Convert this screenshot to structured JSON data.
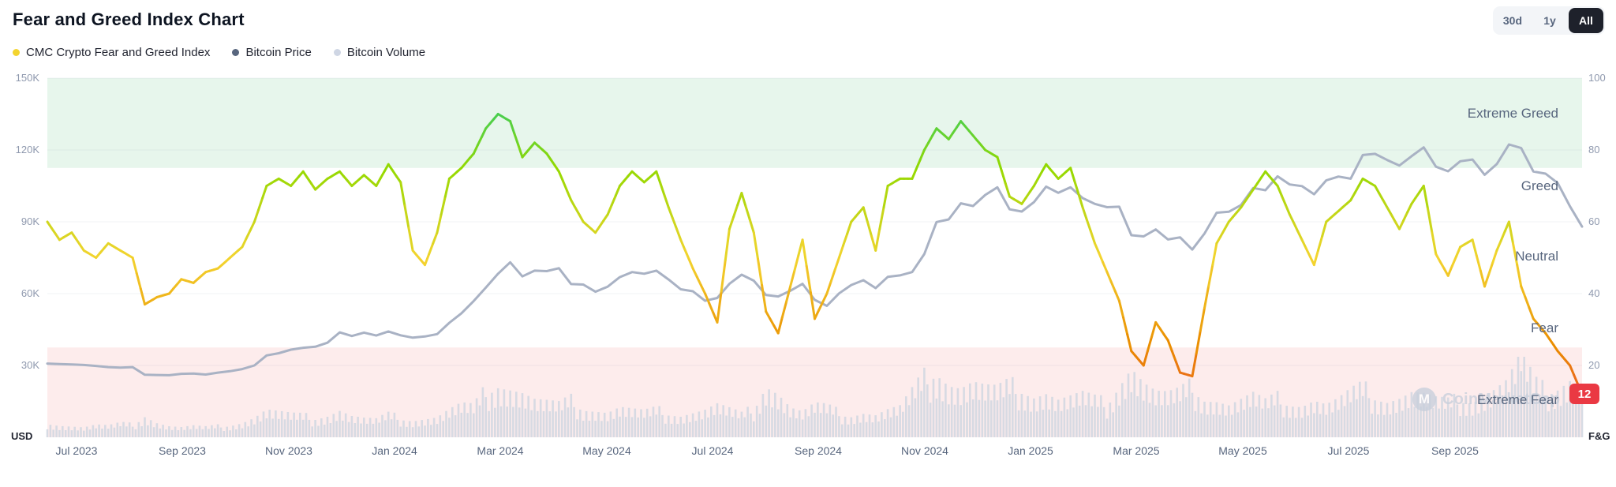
{
  "header": {
    "title": "Fear and Greed Index Chart",
    "range_buttons": [
      {
        "label": "30d",
        "selected": false
      },
      {
        "label": "1y",
        "selected": false
      },
      {
        "label": "All",
        "selected": true
      }
    ]
  },
  "legend": [
    {
      "label": "CMC Crypto Fear and Greed Index",
      "color": "#F3D42F"
    },
    {
      "label": "Bitcoin Price",
      "color": "#58667E"
    },
    {
      "label": "Bitcoin Volume",
      "color": "#CFD6E4"
    }
  ],
  "watermark": {
    "logo_letter": "M",
    "text": "CoinMarketCap"
  },
  "chart_data": {
    "type": "line",
    "title": "Fear and Greed Index Chart",
    "x_interval": "weekly",
    "x_range": [
      "Jun 2023",
      "Nov 2025"
    ],
    "x_tick_labels": [
      "Jul 2023",
      "Sep 2023",
      "Nov 2023",
      "Jan 2024",
      "Mar 2024",
      "May 2024",
      "Jul 2024",
      "Sep 2024",
      "Nov 2024",
      "Jan 2025",
      "Mar 2025",
      "May 2025",
      "Jul 2025",
      "Sep 2025"
    ],
    "left_axis": {
      "label": "USD",
      "ticks": [
        "150K",
        "120K",
        "90K",
        "60K",
        "30K"
      ],
      "min": 0,
      "max": 150000
    },
    "right_axis": {
      "label": "F&G",
      "ticks": [
        "100",
        "80",
        "60",
        "40",
        "20"
      ],
      "min": 0,
      "max": 100
    },
    "bands": [
      {
        "name": "Extreme Greed",
        "range": [
          75,
          100
        ],
        "color": "#E7F6EC"
      },
      {
        "name": "Extreme Fear",
        "range": [
          0,
          25
        ],
        "color": "#FDECEC"
      }
    ],
    "zone_labels": [
      "Extreme Greed",
      "Greed",
      "Neutral",
      "Fear",
      "Extreme Fear"
    ],
    "current_value": 12,
    "colors": {
      "badge": "#EA3943",
      "bitcoin_line": "#A9B2C4",
      "volume": "#D3D8E2",
      "grid": "rgba(88,102,126,0.08)"
    },
    "fg_color_stops": [
      {
        "value": 0,
        "color": "#EA3943"
      },
      {
        "value": 25,
        "color": "#EA8C00"
      },
      {
        "value": 50,
        "color": "#F3D42F"
      },
      {
        "value": 75,
        "color": "#93D900"
      },
      {
        "value": 100,
        "color": "#16C784"
      }
    ],
    "series": [
      {
        "name": "CMC Crypto Fear and Greed Index",
        "axis": "right",
        "values": [
          60,
          55,
          57,
          52,
          50,
          54,
          52,
          50,
          37,
          39,
          40,
          44,
          43,
          46,
          47,
          50,
          53,
          60,
          70,
          72,
          70,
          74,
          69,
          72,
          74,
          70,
          73,
          70,
          76,
          71,
          52,
          48,
          57,
          72,
          75,
          79,
          86,
          90,
          88,
          78,
          82,
          79,
          74,
          66,
          60,
          57,
          62,
          70,
          74,
          71,
          74,
          64,
          55,
          47,
          40,
          32,
          58,
          68,
          57,
          35,
          29,
          42,
          55,
          33,
          40,
          50,
          60,
          64,
          52,
          70,
          72,
          72,
          80,
          86,
          83,
          88,
          84,
          80,
          78,
          67,
          65,
          70,
          76,
          72,
          75,
          64,
          54,
          46,
          38,
          24,
          20,
          32,
          27,
          18,
          17,
          36,
          54,
          60,
          64,
          69,
          74,
          70,
          62,
          55,
          48,
          60,
          63,
          66,
          72,
          70,
          64,
          58,
          65,
          70,
          51,
          45,
          53,
          55,
          42,
          52,
          60,
          42,
          33,
          29,
          24,
          20,
          12
        ]
      },
      {
        "name": "Bitcoin Price",
        "axis": "left",
        "unit": "thousand USD",
        "values": [
          30.8,
          30.6,
          30.4,
          30.2,
          29.8,
          29.3,
          29.1,
          29.3,
          26.1,
          26.0,
          25.9,
          26.5,
          26.6,
          26.2,
          27.0,
          27.6,
          28.5,
          30.0,
          34.2,
          35.1,
          36.6,
          37.4,
          37.8,
          39.5,
          43.8,
          42.3,
          43.7,
          42.5,
          44.2,
          42.6,
          41.6,
          42.1,
          43.1,
          47.8,
          51.8,
          56.9,
          62.5,
          68.3,
          73.1,
          67.2,
          69.6,
          69.4,
          70.6,
          64.0,
          63.8,
          60.8,
          62.9,
          66.9,
          69.0,
          68.3,
          69.6,
          65.9,
          61.8,
          61.0,
          57.0,
          58.2,
          64.1,
          67.9,
          65.4,
          59.4,
          58.8,
          61.2,
          64.1,
          57.4,
          54.9,
          60.1,
          63.6,
          65.6,
          62.3,
          67.0,
          67.6,
          69.0,
          76.5,
          89.9,
          91.0,
          97.7,
          96.6,
          101.2,
          104.4,
          95.2,
          94.3,
          98.2,
          104.7,
          102.1,
          104.4,
          99.9,
          97.5,
          96.1,
          96.3,
          84.4,
          83.9,
          86.8,
          82.6,
          83.5,
          78.4,
          85.1,
          93.8,
          94.2,
          97.0,
          104.1,
          103.2,
          109.0,
          105.6,
          104.9,
          101.5,
          107.3,
          108.9,
          108.0,
          117.9,
          118.4,
          115.8,
          113.5,
          117.4,
          121.1,
          113.0,
          111.1,
          115.3,
          116.0,
          109.6,
          114.1,
          122.3,
          120.8,
          111.0,
          110.1,
          106.2,
          96.5,
          88.0
        ]
      },
      {
        "name": "Bitcoin Volume",
        "axis": "hidden",
        "unit": "relative",
        "values": [
          12,
          10,
          9,
          8,
          10,
          9,
          11,
          10,
          18,
          12,
          9,
          8,
          9,
          8,
          9,
          10,
          12,
          16,
          22,
          20,
          18,
          17,
          16,
          18,
          22,
          17,
          15,
          14,
          18,
          16,
          14,
          15,
          16,
          22,
          26,
          24,
          38,
          44,
          40,
          36,
          30,
          28,
          26,
          30,
          24,
          22,
          20,
          24,
          22,
          20,
          22,
          20,
          18,
          20,
          22,
          26,
          22,
          18,
          24,
          44,
          36,
          24,
          20,
          26,
          24,
          20,
          18,
          20,
          18,
          22,
          24,
          36,
          48,
          56,
          44,
          40,
          44,
          40,
          38,
          42,
          40,
          34,
          36,
          30,
          32,
          34,
          30,
          28,
          44,
          58,
          44,
          36,
          34,
          36,
          42,
          32,
          30,
          26,
          30,
          34,
          28,
          32,
          28,
          26,
          30,
          26,
          30,
          36,
          40,
          34,
          30,
          32,
          36,
          34,
          30,
          28,
          32,
          30,
          34,
          40,
          46,
          70,
          44,
          38,
          42,
          48,
          40
        ]
      }
    ]
  }
}
